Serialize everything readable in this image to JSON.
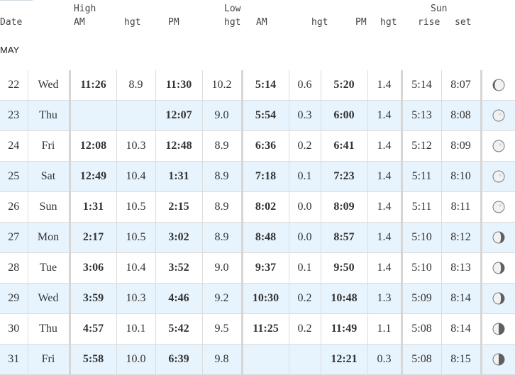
{
  "headers": {
    "high": "High",
    "low": "Low",
    "sun": "Sun",
    "date": "Date",
    "am": "AM",
    "hgt": "hgt",
    "pm": "PM",
    "rise": "rise",
    "set": "set"
  },
  "month": "MAY",
  "rows": [
    {
      "day": "22",
      "dow": "Wed",
      "high_am": "11:26",
      "high_am_hgt": "8.9",
      "high_pm": "11:30",
      "high_pm_hgt": "10.2",
      "low_am": "5:14",
      "low_am_hgt": "0.6",
      "low_pm": "5:20",
      "low_pm_hgt": "1.4",
      "rise": "5:14",
      "set": "8:07",
      "moon": "waxing-gibbous-icon"
    },
    {
      "day": "23",
      "dow": "Thu",
      "high_am": "",
      "high_am_hgt": "",
      "high_pm": "12:07",
      "high_pm_hgt": "9.0",
      "low_am": "5:54",
      "low_am_hgt": "0.3",
      "low_pm": "6:00",
      "low_pm_hgt": "1.4",
      "rise": "5:13",
      "set": "8:08",
      "moon": "full-moon-icon"
    },
    {
      "day": "24",
      "dow": "Fri",
      "high_am": "12:08",
      "high_am_hgt": "10.3",
      "high_pm": "12:48",
      "high_pm_hgt": "8.9",
      "low_am": "6:36",
      "low_am_hgt": "0.2",
      "low_pm": "6:41",
      "low_pm_hgt": "1.4",
      "rise": "5:12",
      "set": "8:09",
      "moon": "full-moon-icon"
    },
    {
      "day": "25",
      "dow": "Sat",
      "high_am": "12:49",
      "high_am_hgt": "10.4",
      "high_pm": "1:31",
      "high_pm_hgt": "8.9",
      "low_am": "7:18",
      "low_am_hgt": "0.1",
      "low_pm": "7:23",
      "low_pm_hgt": "1.4",
      "rise": "5:11",
      "set": "8:10",
      "moon": "full-moon-icon"
    },
    {
      "day": "26",
      "dow": "Sun",
      "high_am": "1:31",
      "high_am_hgt": "10.5",
      "high_pm": "2:15",
      "high_pm_hgt": "8.9",
      "low_am": "8:02",
      "low_am_hgt": "0.0",
      "low_pm": "8:09",
      "low_pm_hgt": "1.4",
      "rise": "5:11",
      "set": "8:11",
      "moon": "full-moon-icon"
    },
    {
      "day": "27",
      "dow": "Mon",
      "high_am": "2:17",
      "high_am_hgt": "10.5",
      "high_pm": "3:02",
      "high_pm_hgt": "8.9",
      "low_am": "8:48",
      "low_am_hgt": "0.0",
      "low_pm": "8:57",
      "low_pm_hgt": "1.4",
      "rise": "5:10",
      "set": "8:12",
      "moon": "waning-gibbous-icon"
    },
    {
      "day": "28",
      "dow": "Tue",
      "high_am": "3:06",
      "high_am_hgt": "10.4",
      "high_pm": "3:52",
      "high_pm_hgt": "9.0",
      "low_am": "9:37",
      "low_am_hgt": "0.1",
      "low_pm": "9:50",
      "low_pm_hgt": "1.4",
      "rise": "5:10",
      "set": "8:13",
      "moon": "waning-gibbous-icon"
    },
    {
      "day": "29",
      "dow": "Wed",
      "high_am": "3:59",
      "high_am_hgt": "10.3",
      "high_pm": "4:46",
      "high_pm_hgt": "9.2",
      "low_am": "10:30",
      "low_am_hgt": "0.2",
      "low_pm": "10:48",
      "low_pm_hgt": "1.3",
      "rise": "5:09",
      "set": "8:14",
      "moon": "waning-gibbous-icon"
    },
    {
      "day": "30",
      "dow": "Thu",
      "high_am": "4:57",
      "high_am_hgt": "10.1",
      "high_pm": "5:42",
      "high_pm_hgt": "9.5",
      "low_am": "11:25",
      "low_am_hgt": "0.2",
      "low_pm": "11:49",
      "low_pm_hgt": "1.1",
      "rise": "5:08",
      "set": "8:14",
      "moon": "last-quarter-icon"
    },
    {
      "day": "31",
      "dow": "Fri",
      "high_am": "5:58",
      "high_am_hgt": "10.0",
      "high_pm": "6:39",
      "high_pm_hgt": "9.8",
      "low_am": "",
      "low_am_hgt": "",
      "low_pm": "12:21",
      "low_pm_hgt": "0.3",
      "rise": "5:08",
      "set": "8:15",
      "moon": "last-quarter-icon"
    }
  ],
  "moon_phase_fill": {
    "full-moon-icon": 1.0,
    "waxing-gibbous-icon": 0.85,
    "waning-gibbous-icon": 0.7,
    "last-quarter-icon": 0.5
  },
  "colors": {
    "row_alt": "#e8f4fd",
    "moon_dark": "#5f5f5f",
    "moon_light": "#f2f2f2"
  }
}
